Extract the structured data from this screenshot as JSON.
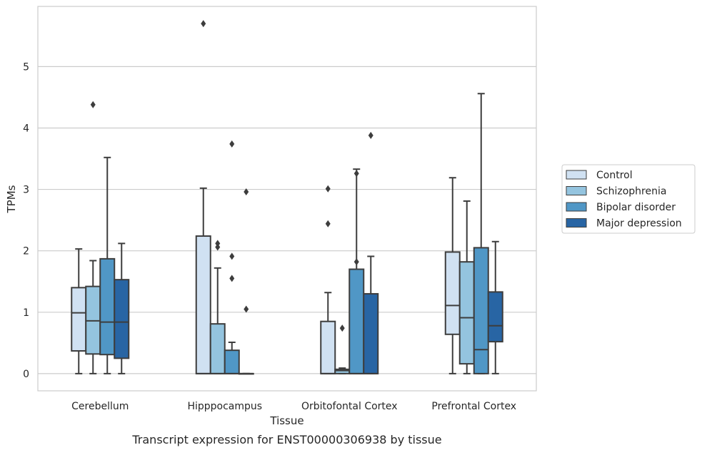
{
  "chart_data": {
    "type": "boxplot",
    "caption": "Transcript expression for ENST00000306938 by tissue",
    "xlabel": "Tissue",
    "ylabel": "TPMs",
    "ylim": [
      -0.28,
      5.98
    ],
    "yticks": [
      0,
      1,
      2,
      3,
      4,
      5
    ],
    "grid": "horizontal",
    "legend_placement": "right-outside",
    "categories": [
      "Cerebellum",
      "Hipppocampus",
      "Orbitofontal Cortex",
      "Prefrontal Cortex"
    ],
    "series": [
      {
        "name": "Control",
        "color": "#d0e1f2",
        "boxes": [
          {
            "whislo": 0,
            "q1": 0.37,
            "med": 0.99,
            "q3": 1.4,
            "whishi": 2.03,
            "fliers": []
          },
          {
            "whislo": 0,
            "q1": 0,
            "med": 0,
            "q3": 2.24,
            "whishi": 3.02,
            "fliers": [
              5.7
            ]
          },
          {
            "whislo": 0,
            "q1": 0,
            "med": 0,
            "q3": 0.85,
            "whishi": 1.32,
            "fliers": [
              2.44,
              3.01
            ]
          },
          {
            "whislo": 0,
            "q1": 0.64,
            "med": 1.11,
            "q3": 1.98,
            "whishi": 3.19,
            "fliers": []
          }
        ]
      },
      {
        "name": "Schizophrenia",
        "color": "#94c4df",
        "boxes": [
          {
            "whislo": 0,
            "q1": 0.32,
            "med": 0.86,
            "q3": 1.42,
            "whishi": 1.84,
            "fliers": [
              4.38
            ]
          },
          {
            "whislo": 0,
            "q1": 0,
            "med": 0,
            "q3": 0.81,
            "whishi": 1.72,
            "fliers": [
              2.06,
              2.12
            ]
          },
          {
            "whislo": 0,
            "q1": 0,
            "med": 0.05,
            "q3": 0.07,
            "whishi": 0.09,
            "fliers": [
              0.74
            ]
          },
          {
            "whislo": 0,
            "q1": 0.16,
            "med": 0.91,
            "q3": 1.82,
            "whishi": 2.81,
            "fliers": []
          }
        ]
      },
      {
        "name": "Bipolar disorder",
        "color": "#5097c6",
        "boxes": [
          {
            "whislo": 0,
            "q1": 0.31,
            "med": 0.84,
            "q3": 1.87,
            "whishi": 3.52,
            "fliers": []
          },
          {
            "whislo": 0,
            "q1": 0,
            "med": 0,
            "q3": 0.38,
            "whishi": 0.51,
            "fliers": [
              1.55,
              1.91,
              3.74
            ]
          },
          {
            "whislo": 0,
            "q1": 0,
            "med": 0,
            "q3": 1.7,
            "whishi": 3.33,
            "fliers": [
              1.82,
              3.26
            ]
          },
          {
            "whislo": 0,
            "q1": 0,
            "med": 0.39,
            "q3": 2.05,
            "whishi": 4.56,
            "fliers": []
          }
        ]
      },
      {
        "name": "Major depression",
        "color": "#2865a4",
        "boxes": [
          {
            "whislo": 0,
            "q1": 0.25,
            "med": 0.84,
            "q3": 1.53,
            "whishi": 2.12,
            "fliers": []
          },
          {
            "whislo": 0,
            "q1": 0,
            "med": 0,
            "q3": 0,
            "whishi": 0,
            "fliers": [
              1.05,
              2.96
            ]
          },
          {
            "whislo": 0,
            "q1": 0,
            "med": 0,
            "q3": 1.3,
            "whishi": 1.91,
            "fliers": [
              3.88
            ]
          },
          {
            "whislo": 0,
            "q1": 0.52,
            "med": 0.78,
            "q3": 1.33,
            "whishi": 2.15,
            "fliers": []
          }
        ]
      }
    ]
  }
}
